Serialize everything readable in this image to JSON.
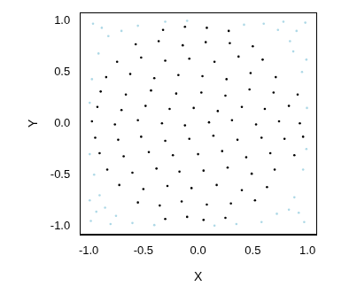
{
  "chart_data": {
    "type": "scatter",
    "x_label": "X",
    "y_label": "Y",
    "xlim": [
      -1.08,
      1.08
    ],
    "ylim": [
      -1.08,
      1.08
    ],
    "xticks": [
      {
        "value": -1,
        "label": "-1.0"
      },
      {
        "value": -0.5,
        "label": "-0.5"
      },
      {
        "value": 0,
        "label": "0.0"
      },
      {
        "value": 0.5,
        "label": "0.5"
      },
      {
        "value": 1,
        "label": "1.0"
      }
    ],
    "yticks": [
      {
        "value": -1,
        "label": "-1.0"
      },
      {
        "value": -0.5,
        "label": "-0.5"
      },
      {
        "value": 0,
        "label": "0.0"
      },
      {
        "value": 0.5,
        "label": "0.5"
      },
      {
        "value": 1,
        "label": "1.0"
      }
    ],
    "grid": false,
    "series": [
      {
        "color": "#add8e6",
        "marker": "circle",
        "x": [
          -0.98,
          -0.9,
          -0.75,
          -0.95,
          -0.6,
          -0.85,
          -0.99,
          -0.4,
          0.97,
          0.88,
          0.72,
          0.96,
          0.58,
          0.83,
          0.99,
          0.35,
          -0.96,
          -0.91,
          -0.7,
          -0.97,
          -0.55,
          -0.82,
          -0.99,
          -0.3,
          0.98,
          0.87,
          0.73,
          0.95,
          0.6,
          0.84,
          0.995,
          0.42,
          -0.8,
          0.78,
          -0.99,
          0.99,
          -0.93,
          0.92,
          -0.88,
          0.9,
          0.15,
          -0.1
        ],
        "y": [
          -0.95,
          -0.7,
          -0.9,
          -0.5,
          -0.97,
          -0.82,
          -0.3,
          -0.99,
          -0.96,
          -0.72,
          -0.88,
          -0.45,
          -0.96,
          -0.84,
          -0.25,
          -0.98,
          0.97,
          0.68,
          0.9,
          0.43,
          0.95,
          0.85,
          0.2,
          0.99,
          0.98,
          0.7,
          0.91,
          0.5,
          0.97,
          0.8,
          0.15,
          0.96,
          -0.98,
          0.99,
          -0.75,
          0.62,
          -0.86,
          -0.87,
          0.93,
          0.9,
          -0.995,
          0.998
        ]
      },
      {
        "color": "#000000",
        "marker": "circle",
        "x": [
          -0.3,
          -0.1,
          0.05,
          0.25,
          -0.55,
          -0.35,
          -0.15,
          0.08,
          0.3,
          0.52,
          -0.72,
          -0.5,
          -0.28,
          -0.06,
          0.17,
          0.4,
          0.63,
          -0.83,
          -0.6,
          -0.38,
          -0.17,
          0.05,
          0.27,
          0.49,
          0.7,
          -0.9,
          -0.68,
          -0.45,
          -0.23,
          0,
          0.22,
          0.44,
          0.66,
          0.88,
          -0.94,
          -0.73,
          -0.52,
          -0.3,
          -0.08,
          0.14,
          0.36,
          0.58,
          0.79,
          0.96,
          -0.97,
          -0.76,
          -0.55,
          -0.33,
          -0.12,
          0.1,
          0.31,
          0.53,
          0.74,
          0.93,
          -0.92,
          -0.7,
          -0.48,
          -0.26,
          -0.04,
          0.18,
          0.4,
          0.61,
          0.83,
          -0.89,
          -0.66,
          -0.43,
          -0.2,
          0.03,
          0.25,
          0.47,
          0.69,
          0.91,
          -0.84,
          -0.62,
          -0.4,
          -0.18,
          0.04,
          0.26,
          0.48,
          0.71,
          -0.74,
          -0.52,
          -0.3,
          -0.08,
          0.15,
          0.37,
          0.59,
          -0.57,
          -0.36,
          -0.14,
          0.07,
          0.29,
          0.5,
          -0.32,
          -0.12,
          0.08,
          0.28
        ],
        "y": [
          -0.93,
          -0.91,
          -0.94,
          -0.92,
          -0.77,
          -0.8,
          -0.76,
          -0.79,
          -0.78,
          -0.75,
          -0.6,
          -0.64,
          -0.61,
          -0.63,
          -0.6,
          -0.65,
          -0.62,
          -0.45,
          -0.48,
          -0.44,
          -0.47,
          -0.46,
          -0.43,
          -0.49,
          -0.45,
          -0.29,
          -0.32,
          -0.28,
          -0.31,
          -0.3,
          -0.27,
          -0.33,
          -0.29,
          -0.31,
          -0.14,
          -0.16,
          -0.13,
          -0.17,
          -0.15,
          -0.12,
          -0.16,
          -0.14,
          -0.15,
          -0.13,
          0.02,
          -0.01,
          0.03,
          0,
          -0.02,
          0.01,
          0.03,
          -0.01,
          0.02,
          0,
          0.16,
          0.13,
          0.17,
          0.14,
          0.15,
          0.12,
          0.16,
          0.14,
          0.17,
          0.31,
          0.28,
          0.32,
          0.29,
          0.3,
          0.27,
          0.33,
          0.3,
          0.28,
          0.45,
          0.48,
          0.44,
          0.47,
          0.46,
          0.43,
          0.49,
          0.45,
          0.6,
          0.64,
          0.61,
          0.63,
          0.6,
          0.65,
          0.62,
          0.77,
          0.8,
          0.76,
          0.79,
          0.78,
          0.75,
          0.91,
          0.94,
          0.93,
          0.9
        ]
      }
    ]
  }
}
